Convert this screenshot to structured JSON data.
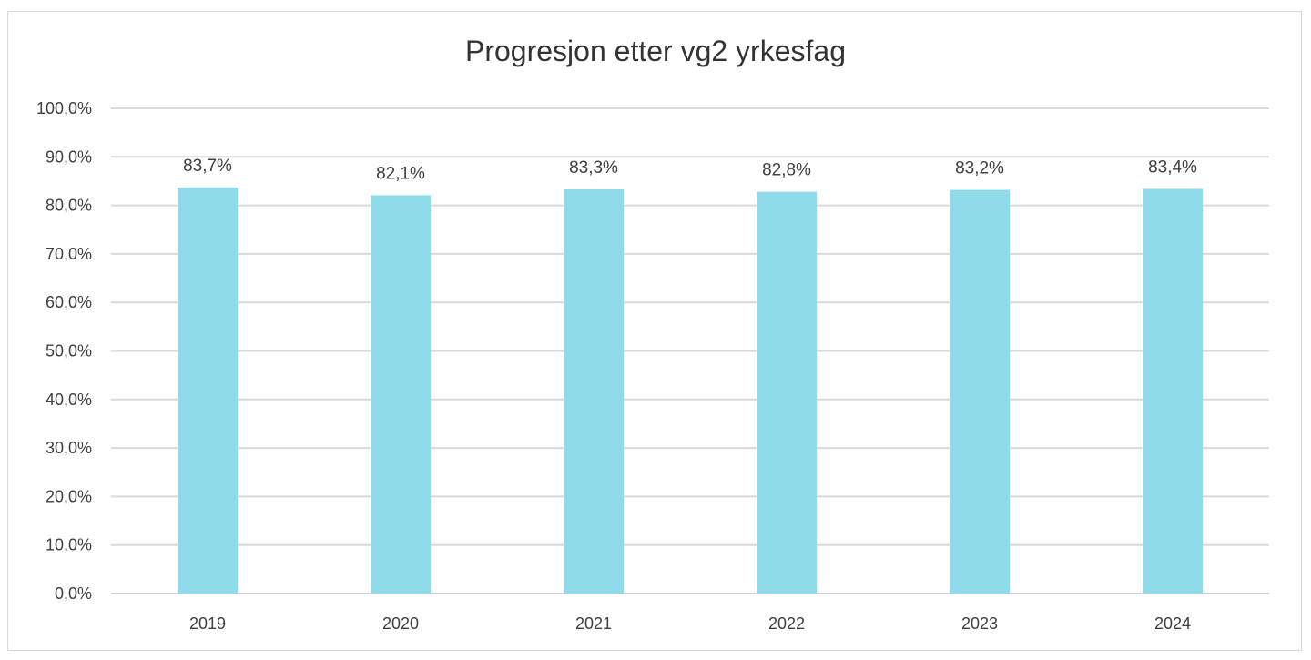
{
  "chart_data": {
    "type": "bar",
    "title": "Progresjon etter vg2 yrkesfag",
    "categories": [
      "2019",
      "2020",
      "2021",
      "2022",
      "2023",
      "2024"
    ],
    "values": [
      83.7,
      82.1,
      83.3,
      82.8,
      83.2,
      83.4
    ],
    "data_labels": [
      "83,7%",
      "82,1%",
      "83,3%",
      "82,8%",
      "83,2%",
      "83,4%"
    ],
    "y_tick_labels": [
      "0,0%",
      "10,0%",
      "20,0%",
      "30,0%",
      "40,0%",
      "50,0%",
      "60,0%",
      "70,0%",
      "80,0%",
      "90,0%",
      "100,0%"
    ],
    "ylim": [
      0,
      100
    ],
    "xlabel": "",
    "ylabel": "",
    "grid": true,
    "legend": "none",
    "bar_color": "#8fdbea"
  }
}
